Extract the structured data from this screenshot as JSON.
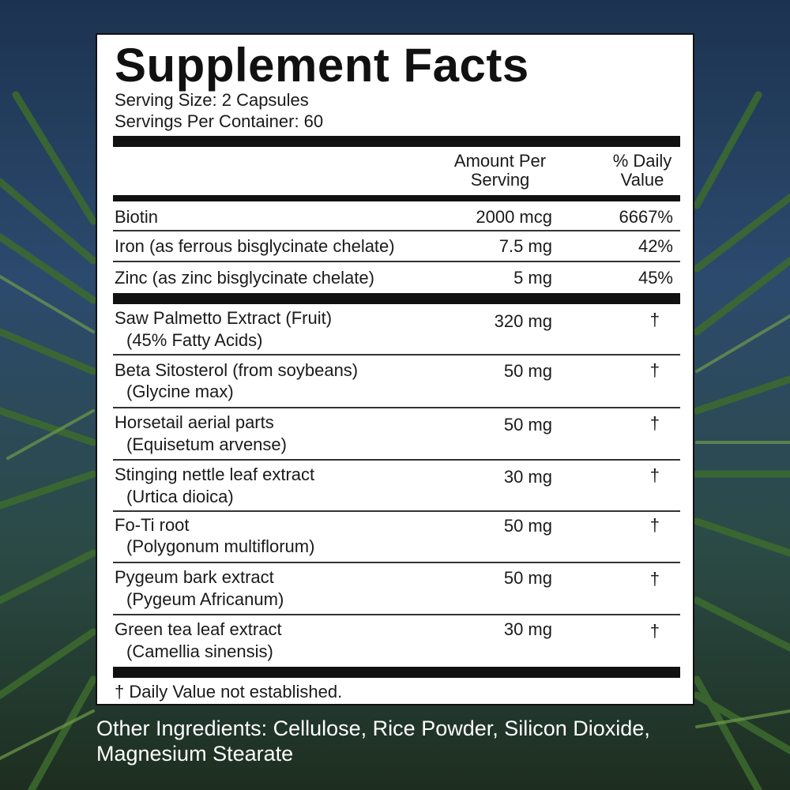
{
  "panel": {
    "title": "Supplement Facts",
    "serving_size": "Serving Size: 2 Capsules",
    "servings_per_container": "Servings Per Container: 60",
    "col_amount": "Amount Per Serving",
    "col_dv": "% Daily Value",
    "vitamins": [
      {
        "name": "Biotin",
        "amount": "2000 mcg",
        "dv": "6667%"
      },
      {
        "name": "Iron (as ferrous bisglycinate chelate)",
        "amount": "7.5 mg",
        "dv": "42%"
      },
      {
        "name": "Zinc (as zinc bisglycinate chelate)",
        "amount": "5 mg",
        "dv": "45%"
      }
    ],
    "herbals": [
      {
        "name": "Saw Palmetto Extract (Fruit)",
        "sub": "(45% Fatty Acids)",
        "amount": "320 mg",
        "dv": "†"
      },
      {
        "name": "Beta Sitosterol (from soybeans)",
        "sub": "(Glycine max)",
        "amount": "50 mg",
        "dv": "†"
      },
      {
        "name": "Horsetail aerial parts",
        "sub": "(Equisetum arvense)",
        "amount": "50 mg",
        "dv": "†"
      },
      {
        "name": "Stinging nettle leaf extract",
        "sub": "(Urtica dioica)",
        "amount": "30 mg",
        "dv": "†"
      },
      {
        "name": "Fo-Ti root",
        "sub": "(Polygonum multiflorum)",
        "amount": "50 mg",
        "dv": "†"
      },
      {
        "name": "Pygeum bark extract",
        "sub": "(Pygeum Africanum)",
        "amount": "50 mg",
        "dv": "†"
      },
      {
        "name": "Green tea leaf extract",
        "sub": "(Camellia sinensis)",
        "amount": "30 mg",
        "dv": "†"
      }
    ],
    "footnote": "† Daily Value not established."
  },
  "other_ingredients": "Other Ingredients: Cellulose, Rice Powder, Silicon Dioxide, Magnesium Stearate"
}
